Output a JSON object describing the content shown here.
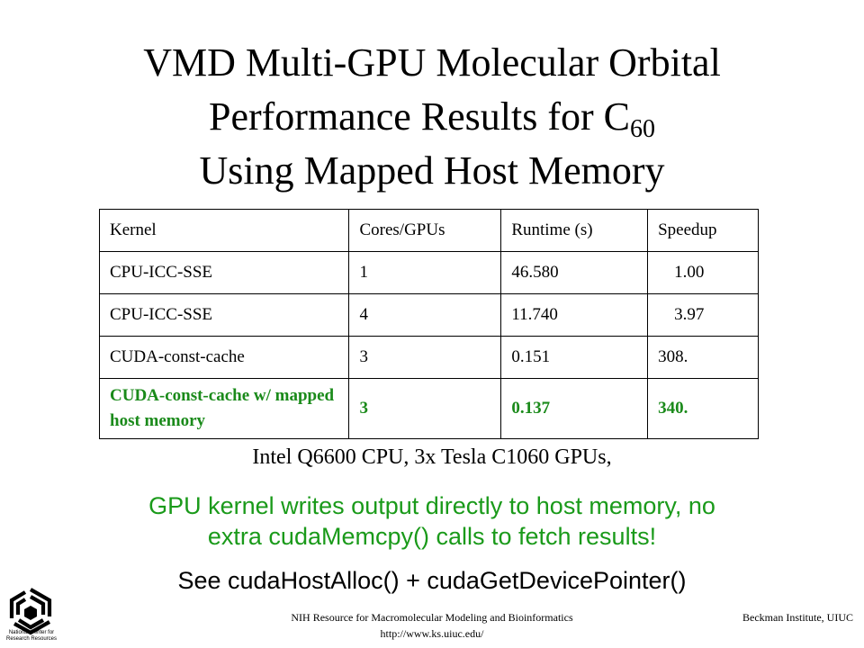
{
  "title": {
    "line1": "VMD Multi-GPU Molecular Orbital",
    "line2_main": "Performance Results for C",
    "line2_sub": "60",
    "line3": "Using Mapped Host Memory"
  },
  "table": {
    "headers": [
      "Kernel",
      "Cores/GPUs",
      "Runtime (s)",
      "Speedup"
    ],
    "rows": [
      [
        "CPU-ICC-SSE",
        "1",
        "46.580",
        "1.00"
      ],
      [
        "CPU-ICC-SSE",
        "4",
        "11.740",
        "3.97"
      ],
      [
        "CUDA-const-cache",
        "3",
        "0.151",
        "308."
      ],
      [
        "CUDA-const-cache w/ mapped host memory",
        "3",
        "0.137",
        "340."
      ]
    ]
  },
  "hardware_note": "Intel Q6600 CPU, 3x Tesla C1060 GPUs,",
  "highlight": {
    "line1": "GPU kernel writes output directly to host memory, no",
    "line2": "extra cudaMemcpy() calls to fetch results!"
  },
  "see_also": "See cudaHostAlloc() + cudaGetDevicePointer()",
  "footer": {
    "left_line1": "NIH Resource for Macromolecular Modeling and Bioinformatics",
    "left_line2": "http://www.ks.uiuc.edu/",
    "right": "Beckman Institute, UIUC"
  },
  "logo": {
    "icon": "ncrr-logo-icon",
    "caption_line1": "National Center for",
    "caption_line2": "Research Resources"
  },
  "colors": {
    "highlight_green": "#1a9a1a",
    "table_green": "#1a8a1a"
  }
}
